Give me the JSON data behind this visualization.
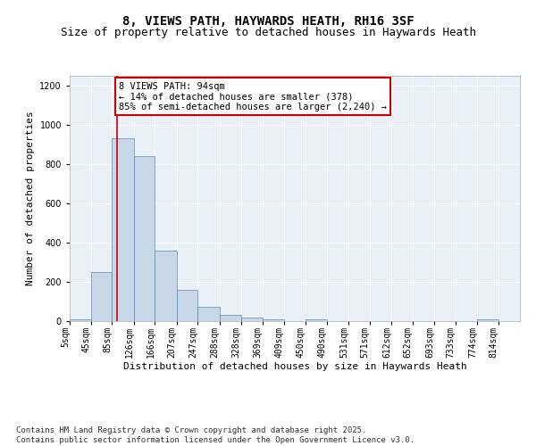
{
  "title": "8, VIEWS PATH, HAYWARDS HEATH, RH16 3SF",
  "subtitle": "Size of property relative to detached houses in Haywards Heath",
  "xlabel": "Distribution of detached houses by size in Haywards Heath",
  "ylabel": "Number of detached properties",
  "categories": [
    "5sqm",
    "45sqm",
    "85sqm",
    "126sqm",
    "166sqm",
    "207sqm",
    "247sqm",
    "288sqm",
    "328sqm",
    "369sqm",
    "409sqm",
    "450sqm",
    "490sqm",
    "531sqm",
    "571sqm",
    "612sqm",
    "652sqm",
    "693sqm",
    "733sqm",
    "774sqm",
    "814sqm"
  ],
  "bar_edges": [
    5,
    45,
    85,
    126,
    166,
    207,
    247,
    288,
    328,
    369,
    409,
    450,
    490,
    531,
    571,
    612,
    652,
    693,
    733,
    774,
    814,
    855
  ],
  "bar_heights": [
    8,
    248,
    930,
    840,
    358,
    158,
    75,
    32,
    18,
    10,
    0,
    10,
    0,
    0,
    0,
    0,
    0,
    0,
    0,
    8,
    0
  ],
  "bar_color": "#c8d8e8",
  "bar_edgecolor": "#5a8ab0",
  "vline_x": 94,
  "vline_color": "#cc0000",
  "ylim": [
    0,
    1250
  ],
  "yticks": [
    0,
    200,
    400,
    600,
    800,
    1000,
    1200
  ],
  "annotation_text": "8 VIEWS PATH: 94sqm\n← 14% of detached houses are smaller (378)\n85% of semi-detached houses are larger (2,240) →",
  "annotation_box_color": "#cc0000",
  "footer_text": "Contains HM Land Registry data © Crown copyright and database right 2025.\nContains public sector information licensed under the Open Government Licence v3.0.",
  "title_fontsize": 10,
  "subtitle_fontsize": 9,
  "axis_label_fontsize": 8,
  "tick_fontsize": 7,
  "annotation_fontsize": 7.5,
  "footer_fontsize": 6.5,
  "plot_background_color": "#eaf0f8"
}
